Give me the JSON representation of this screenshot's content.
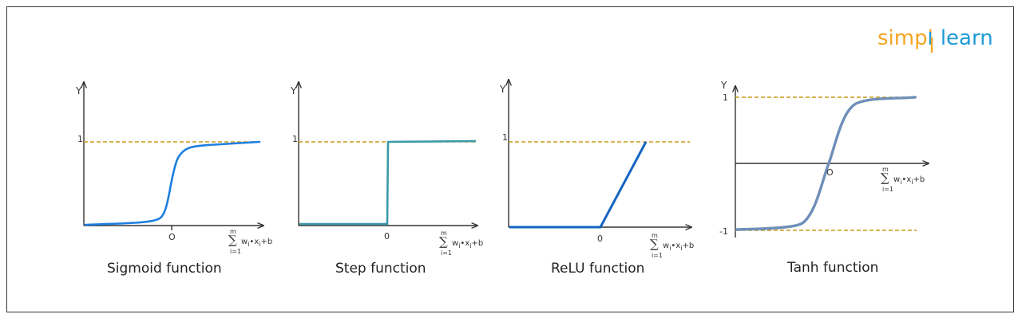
{
  "logo": {
    "part1": "simpl",
    "part2": "learn",
    "colors": {
      "orange": "#f5a623",
      "blue": "#1e9ad6"
    }
  },
  "colors": {
    "axis": "#333333",
    "dashed": "#c89a1c",
    "sigmoid": "#1e7fe0",
    "step": "#3a9aaa",
    "relu": "#1565c0",
    "tanh": "#6e8fb8"
  },
  "formula": {
    "sigma": "∑",
    "upper": "m",
    "lower": "i=1",
    "w": "w",
    "i": "i",
    "x": "•x",
    "b": "+b"
  },
  "panels": [
    {
      "id": "sigmoid",
      "caption": "Sigmoid function",
      "y_label": "Y",
      "top_label": "1",
      "origin_label": "O"
    },
    {
      "id": "step",
      "caption": "Step function",
      "y_label": "Y",
      "top_label": "1",
      "origin_label": "0"
    },
    {
      "id": "relu",
      "caption": "ReLU function",
      "y_label": "Y",
      "top_label": "1",
      "origin_label": "0"
    },
    {
      "id": "tanh",
      "caption": "Tanh function",
      "y_label": "Y",
      "top_label": "1",
      "bottom_label": "-1",
      "origin_label": "O"
    }
  ]
}
